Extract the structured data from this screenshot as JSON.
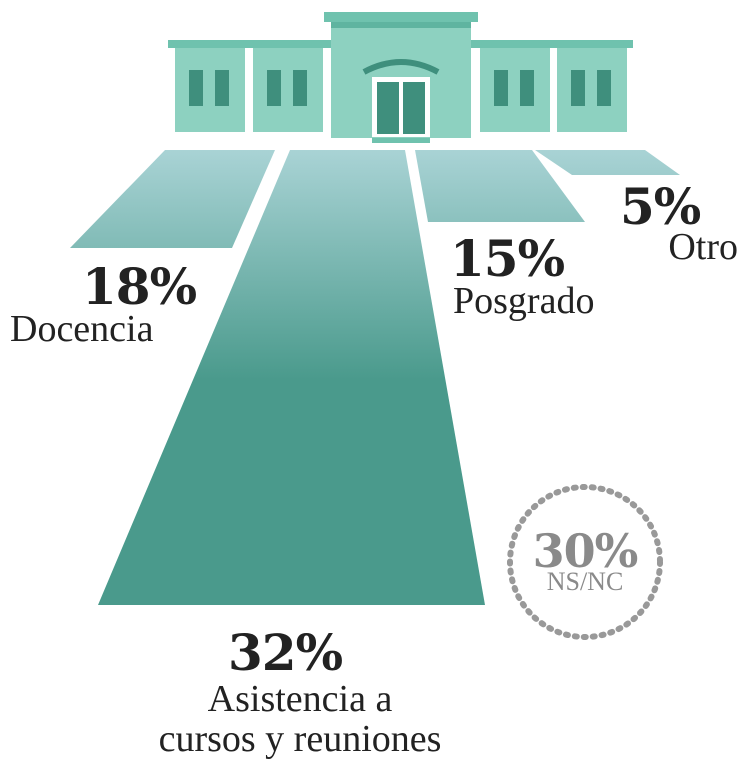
{
  "chart_data": {
    "type": "pictorial",
    "categories": [
      "Docencia",
      "Asistencia a\ncursos y reuniones",
      "Posgrado",
      "Otro",
      "NS/NC"
    ],
    "values": [
      18,
      32,
      15,
      5,
      30
    ],
    "value_labels": [
      "18%",
      "32%",
      "15%",
      "5%",
      "30%"
    ]
  }
}
